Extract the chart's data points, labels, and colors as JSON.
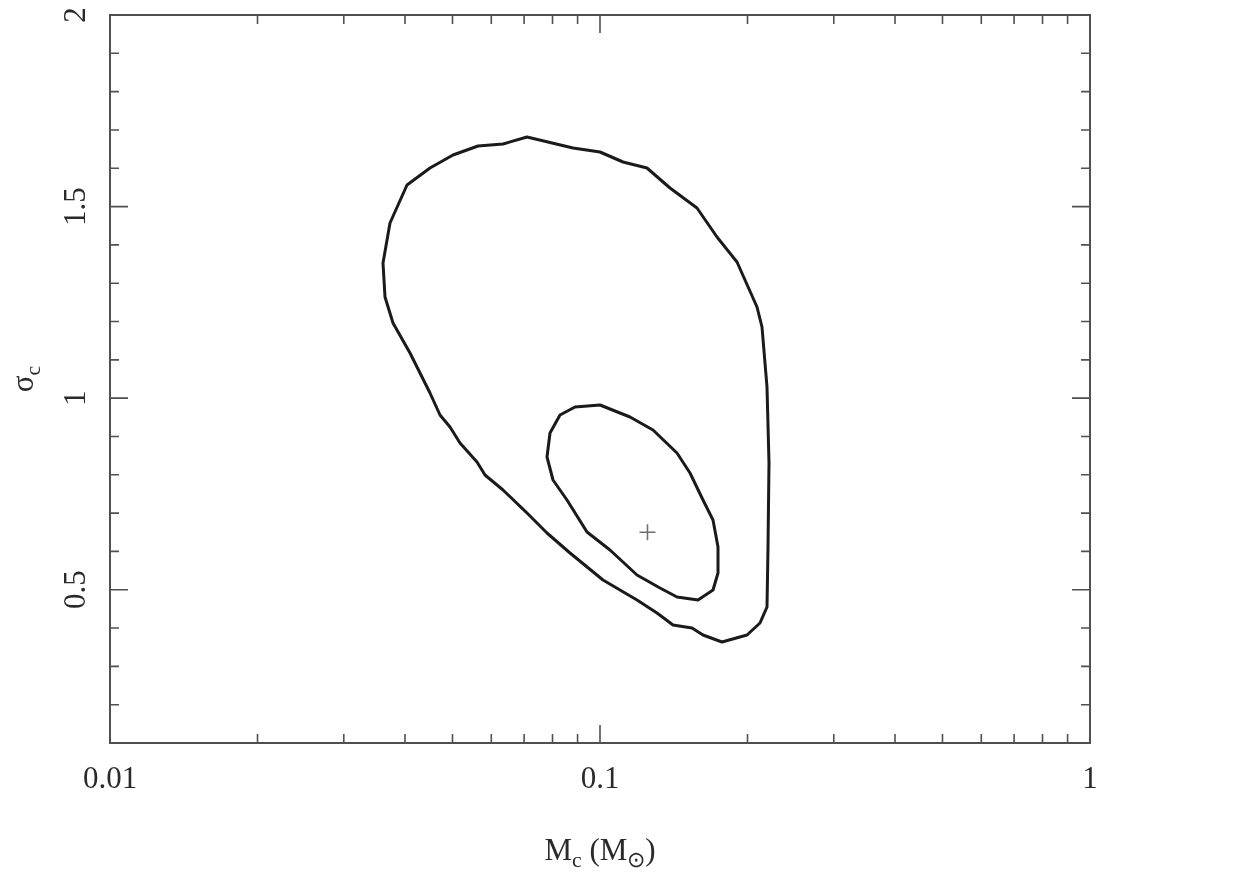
{
  "chart_data": {
    "type": "scatter",
    "xlabel": "M$_{c}$ (M$_{⊙}$)",
    "ylabel": "σ$_{c}$",
    "log": "x",
    "xlim": [
      0.01,
      1
    ],
    "ylim": [
      0.1,
      2
    ],
    "xticks": [
      0.01,
      {
        "value": 0.02,
        "label": null
      },
      {
        "value": 0.03,
        "label": null
      },
      {
        "value": 0.04,
        "label": null
      },
      {
        "value": 0.05,
        "label": null
      },
      {
        "value": 0.06,
        "label": null
      },
      {
        "value": 0.07,
        "label": null
      },
      {
        "value": 0.08,
        "label": null
      },
      {
        "value": 0.09,
        "label": null
      },
      0.1,
      {
        "value": 0.2,
        "label": null
      },
      {
        "value": 0.3,
        "label": null
      },
      {
        "value": 0.4,
        "label": null
      },
      {
        "value": 0.5,
        "label": null
      },
      {
        "value": 0.6,
        "label": null
      },
      {
        "value": 0.7,
        "label": null
      },
      {
        "value": 0.8,
        "label": null
      },
      {
        "value": 0.9,
        "label": null
      },
      1
    ],
    "yticks": [
      {
        "value": 0.2,
        "label": null
      },
      {
        "value": 0.3,
        "label": null
      },
      {
        "value": 0.4,
        "label": null
      },
      0.5,
      {
        "value": 0.6,
        "label": null
      },
      {
        "value": 0.7,
        "label": null
      },
      {
        "value": 0.8,
        "label": null
      },
      {
        "value": 0.9,
        "label": null
      },
      1,
      {
        "value": 1.1,
        "label": null
      },
      {
        "value": 1.2,
        "label": null
      },
      {
        "value": 1.3,
        "label": null
      },
      {
        "value": 1.4,
        "label": null
      },
      1.5,
      {
        "value": 1.6,
        "label": null
      },
      {
        "value": 1.7,
        "label": null
      },
      {
        "value": 1.8,
        "label": null
      },
      {
        "value": 1.9,
        "label": null
      },
      2
    ],
    "x": [
      0.125
    ],
    "values": [
      0.65
    ],
    "color": "#707070",
    "marker": "cross"
  }
}
